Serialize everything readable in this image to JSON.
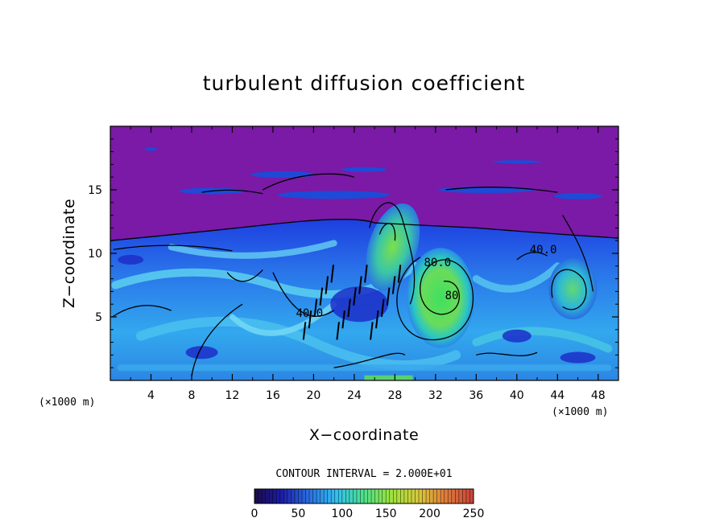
{
  "chart_data": {
    "type": "heatmap",
    "title": "turbulent diffusion coefficient",
    "xlabel": "X−coordinate",
    "ylabel": "Z−coordinate",
    "x_unit": "(×1000 m)",
    "x_unit_right": "(×1000 m)",
    "xlim": [
      0,
      50
    ],
    "ylim": [
      0,
      20
    ],
    "x_ticks": [
      4,
      8,
      12,
      16,
      20,
      24,
      28,
      32,
      36,
      40,
      44,
      48
    ],
    "y_ticks": [
      5,
      10,
      15
    ],
    "contour_interval_text": "CONTOUR INTERVAL = 2.000E+01",
    "contour_interval": 20,
    "colorbar": {
      "min": 0,
      "max": 250,
      "ticks": [
        0,
        50,
        100,
        150,
        200,
        250
      ],
      "colors": [
        "#1a0a4a",
        "#1c1ea8",
        "#2a6fe0",
        "#32c0f0",
        "#4ee08a",
        "#9ce43c",
        "#d8c83c",
        "#e07a3a",
        "#c8423a"
      ]
    },
    "contour_labels": [
      {
        "text": "40.0",
        "x": 19.6,
        "y": 5.0
      },
      {
        "text": "80.0",
        "x": 32.2,
        "y": 9.0
      },
      {
        "text": "80",
        "x": 33.6,
        "y": 6.4
      },
      {
        "text": "40.0",
        "x": 42.6,
        "y": 10.0
      }
    ],
    "field_description_regions": [
      {
        "name": "upper-stable-layer",
        "value": 0,
        "z_range": [
          11.5,
          20
        ]
      },
      {
        "name": "eddy-center",
        "x": 32,
        "z": 6,
        "value": 120
      },
      {
        "name": "rising-plume",
        "x": 28,
        "z": 11,
        "value": 110
      },
      {
        "name": "right-eddy",
        "x": 45,
        "z": 7,
        "value": 100
      },
      {
        "name": "boundary-layer",
        "z_range": [
          0,
          11.5
        ],
        "value": 40
      }
    ]
  }
}
